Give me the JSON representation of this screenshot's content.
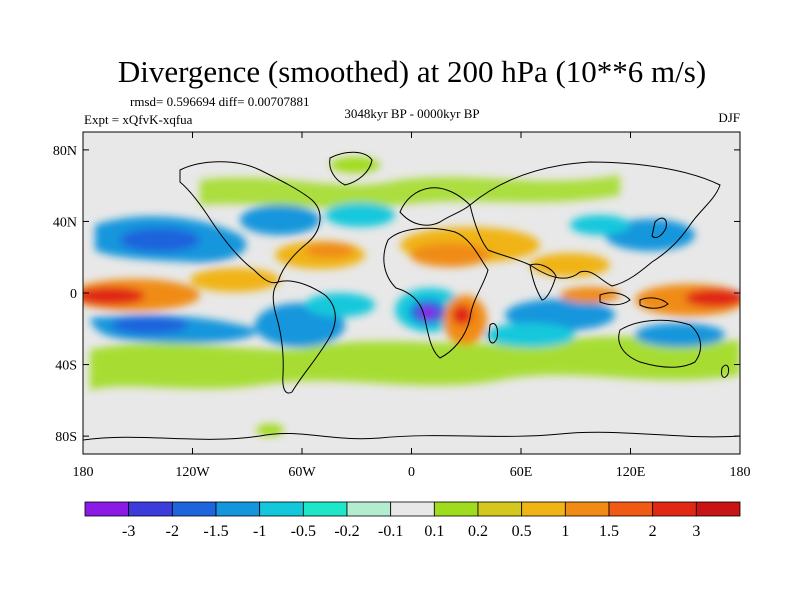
{
  "chart_data": {
    "type": "heatmap",
    "title": "Divergence (smoothed) at 200 hPa (10**6 m/s)",
    "stats_label": "rmsd= 0.596694 diff= 0.00707881",
    "experiment_label": "Expt = xQfvK-xqfua",
    "period_label": "3048kyr BP - 0000kyr BP",
    "season_label": "DJF",
    "x_ticks": [
      "180",
      "120W",
      "60W",
      "0",
      "60E",
      "120E",
      "180"
    ],
    "y_ticks": [
      "80N",
      "40N",
      "0",
      "40S",
      "80S"
    ],
    "x_range": [
      -180,
      180
    ],
    "y_range": [
      -90,
      90
    ],
    "colorbar": {
      "labels": [
        "-3",
        "-2",
        "-1.5",
        "-1",
        "-0.5",
        "-0.2",
        "-0.1",
        "0.1",
        "0.2",
        "0.5",
        "1",
        "1.5",
        "2",
        "3"
      ],
      "colors": [
        "#8c1ae6",
        "#3c3cdc",
        "#1e64dc",
        "#1496dc",
        "#14c8dc",
        "#1ee6c8",
        "#b4ecd0",
        "#e8e8e8",
        "#a0dc1e",
        "#d4c81e",
        "#f0b414",
        "#f08c14",
        "#f05a14",
        "#e02814",
        "#c81414"
      ]
    },
    "features": [
      {
        "name": "equatorial-eastpac-divergence",
        "lon": -160,
        "lat": 0,
        "value": 2.5
      },
      {
        "name": "equatorial-westpac-divergence",
        "lon": 160,
        "lat": 0,
        "value": 2.5
      },
      {
        "name": "amazon-convergence",
        "lon": -40,
        "lat": -5,
        "value": -0.8
      },
      {
        "name": "central-africa-min",
        "lon": 10,
        "lat": -8,
        "value": -3
      },
      {
        "name": "east-africa-divergence",
        "lon": 30,
        "lat": -10,
        "value": 1.5
      },
      {
        "name": "sahara-mideast-divergence",
        "lon": 20,
        "lat": 30,
        "value": 1
      },
      {
        "name": "north-atlantic-divergence",
        "lon": -30,
        "lat": 20,
        "value": 1
      },
      {
        "name": "north-pacific-convergence",
        "lon": -150,
        "lat": 30,
        "value": -1
      },
      {
        "name": "south-pacific-convergence",
        "lon": -150,
        "lat": -15,
        "value": -1
      },
      {
        "name": "indian-ocean-convergence",
        "lon": 70,
        "lat": -10,
        "value": -1
      },
      {
        "name": "southern-ocean-band",
        "lon": -100,
        "lat": -50,
        "value": 0.5
      }
    ]
  }
}
